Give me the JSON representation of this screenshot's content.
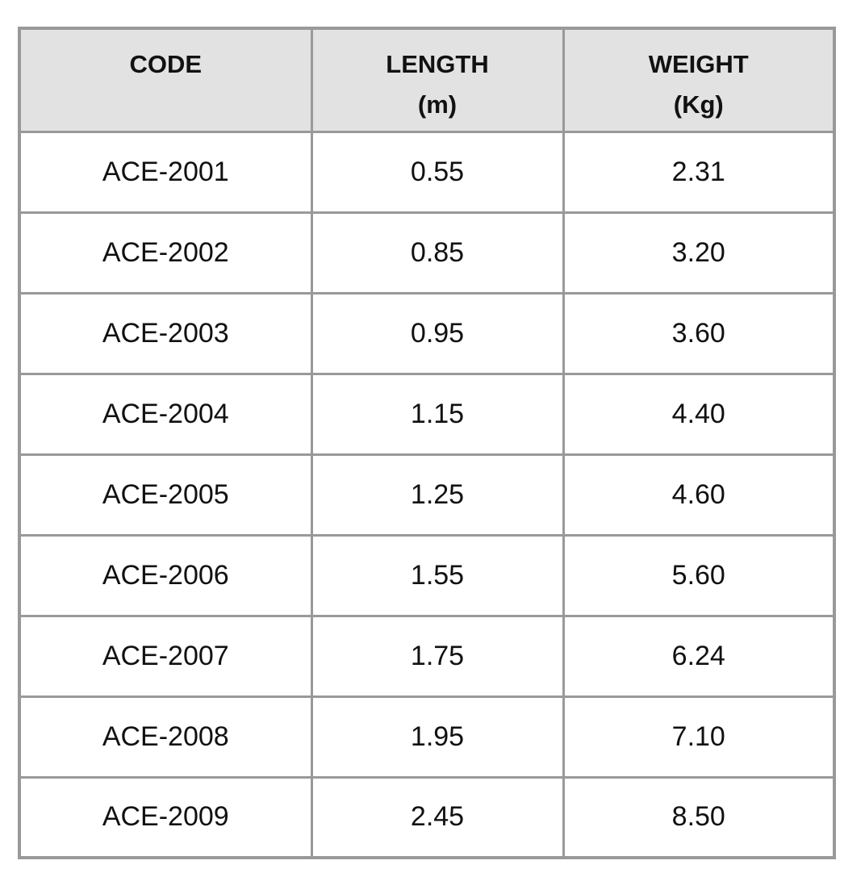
{
  "colors": {
    "border": "#999999",
    "header_background": "#e2e2e2",
    "text": "#111111",
    "page_background": "#ffffff"
  },
  "table": {
    "columns": [
      {
        "label": "CODE",
        "unit": ""
      },
      {
        "label": "LENGTH",
        "unit": "(m)"
      },
      {
        "label": "WEIGHT",
        "unit": "(Kg)"
      }
    ],
    "rows": [
      {
        "code": "ACE-2001",
        "length": "0.55",
        "weight": "2.31"
      },
      {
        "code": "ACE-2002",
        "length": "0.85",
        "weight": "3.20"
      },
      {
        "code": "ACE-2003",
        "length": "0.95",
        "weight": "3.60"
      },
      {
        "code": "ACE-2004",
        "length": "1.15",
        "weight": "4.40"
      },
      {
        "code": "ACE-2005",
        "length": "1.25",
        "weight": "4.60"
      },
      {
        "code": "ACE-2006",
        "length": "1.55",
        "weight": "5.60"
      },
      {
        "code": "ACE-2007",
        "length": "1.75",
        "weight": "6.24"
      },
      {
        "code": "ACE-2008",
        "length": "1.95",
        "weight": "7.10"
      },
      {
        "code": "ACE-2009",
        "length": "2.45",
        "weight": "8.50"
      }
    ]
  },
  "chart_data": {
    "type": "table",
    "title": "",
    "columns": [
      "CODE",
      "LENGTH (m)",
      "WEIGHT (Kg)"
    ],
    "rows": [
      [
        "ACE-2001",
        0.55,
        2.31
      ],
      [
        "ACE-2002",
        0.85,
        3.2
      ],
      [
        "ACE-2003",
        0.95,
        3.6
      ],
      [
        "ACE-2004",
        1.15,
        4.4
      ],
      [
        "ACE-2005",
        1.25,
        4.6
      ],
      [
        "ACE-2006",
        1.55,
        5.6
      ],
      [
        "ACE-2007",
        1.75,
        6.24
      ],
      [
        "ACE-2008",
        1.95,
        7.1
      ],
      [
        "ACE-2009",
        2.45,
        8.5
      ]
    ]
  }
}
